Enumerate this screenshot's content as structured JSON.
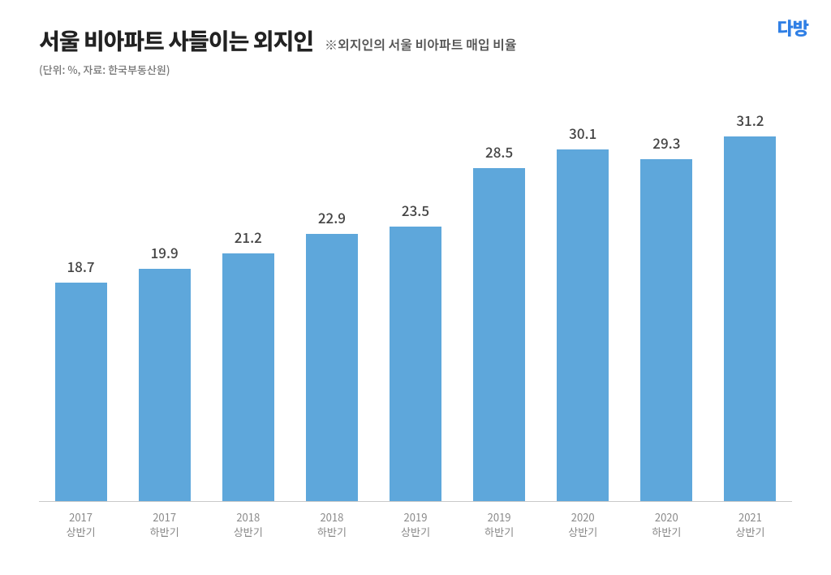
{
  "logo": {
    "text": "다방",
    "color": "#2f7fe5",
    "fontsize": 22
  },
  "header": {
    "title": "서울 비아파트 사들이는 외지인",
    "title_fontsize": 28,
    "title_color": "#222222",
    "subtitle": "※외지인의 서울 비아파트 매입 비율",
    "subtitle_fontsize": 16,
    "subtitle_color": "#555555",
    "unit": "(단위: %, 자료: 한국부동산원)",
    "unit_fontsize": 13,
    "unit_color": "#777777"
  },
  "chart": {
    "type": "bar",
    "categories": [
      {
        "year": "2017",
        "half": "상반기"
      },
      {
        "year": "2017",
        "half": "하반기"
      },
      {
        "year": "2018",
        "half": "상반기"
      },
      {
        "year": "2018",
        "half": "하반기"
      },
      {
        "year": "2019",
        "half": "상반기"
      },
      {
        "year": "2019",
        "half": "하반기"
      },
      {
        "year": "2020",
        "half": "상반기"
      },
      {
        "year": "2020",
        "half": "하반기"
      },
      {
        "year": "2021",
        "half": "상반기"
      }
    ],
    "values": [
      18.7,
      19.9,
      21.2,
      22.9,
      23.5,
      28.5,
      30.1,
      29.3,
      31.2
    ],
    "bar_color": "#5ea7db",
    "value_label_color": "#444444",
    "value_label_fontsize": 17,
    "ymax": 34,
    "ymin": 0,
    "background_color": "#ffffff",
    "axis_color": "#c9c9c9",
    "x_tick_color": "#888888",
    "x_tick_fontsize": 13,
    "bar_width_ratio": 0.62
  }
}
